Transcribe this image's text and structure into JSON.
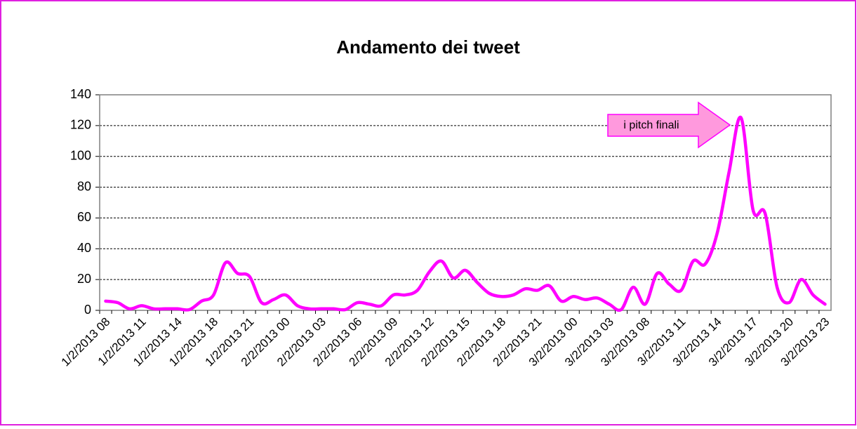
{
  "chart_data": {
    "type": "line",
    "title": "Andamento dei tweet",
    "annotation": "i pitch finali",
    "categories": [
      "1/2/2013 08",
      null,
      null,
      "1/2/2013 11",
      null,
      null,
      "1/2/2013 14",
      null,
      null,
      "1/2/2013 18",
      null,
      null,
      "1/2/2013 21",
      null,
      null,
      "2/2/2013 00",
      null,
      null,
      "2/2/2013 03",
      null,
      null,
      "2/2/2013 06",
      null,
      null,
      "2/2/2013 09",
      null,
      null,
      "2/2/2013 12",
      null,
      null,
      "2/2/2013 15",
      null,
      null,
      "2/2/2013 18",
      null,
      null,
      "2/2/2013 21",
      null,
      null,
      "3/2/2013 00",
      null,
      null,
      "3/2/2013 03",
      null,
      null,
      "3/2/2013 08",
      null,
      null,
      "3/2/2013 11",
      null,
      null,
      "3/2/2013 14",
      null,
      null,
      "3/2/2013 17",
      null,
      null,
      "3/2/2013 20",
      null,
      null,
      "3/2/2013 23"
    ],
    "values": [
      6,
      5,
      1,
      3,
      1,
      1,
      1,
      0.5,
      6,
      10,
      31,
      24,
      22,
      5,
      7,
      10,
      3,
      1,
      1,
      1,
      0.5,
      5,
      4,
      3,
      10,
      10,
      13,
      25,
      32,
      21,
      26,
      18,
      11,
      9,
      10,
      14,
      13,
      16,
      6,
      9,
      7,
      8,
      4,
      0.5,
      15,
      4,
      24,
      17,
      13,
      32,
      30,
      50,
      90,
      125,
      65,
      63,
      15,
      5,
      20,
      10,
      4
    ],
    "color": "#ff00ff",
    "ylim": [
      0,
      140
    ],
    "yticks": [
      0,
      20,
      40,
      60,
      80,
      100,
      120,
      140
    ],
    "grid": true
  }
}
